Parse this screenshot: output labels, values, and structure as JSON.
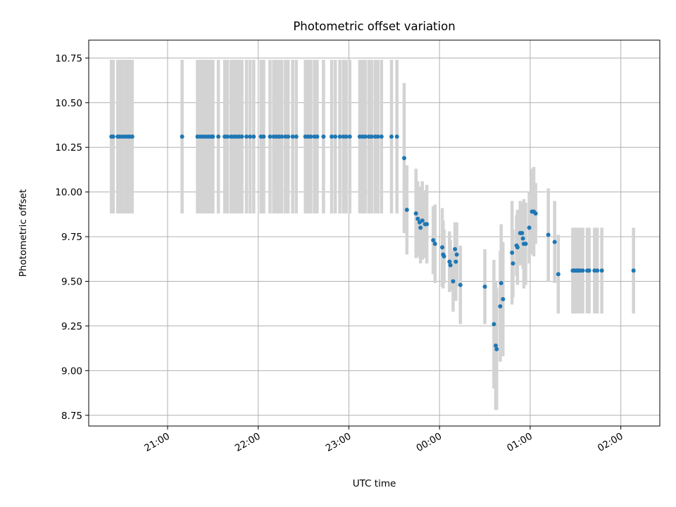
{
  "chart_data": {
    "type": "scatter",
    "title": "Photometric offset variation",
    "xlabel": "UTC time",
    "ylabel": "Photometric offset",
    "xlim": [
      20.13,
      26.43
    ],
    "ylim": [
      8.69,
      10.85
    ],
    "grid": true,
    "colors": {
      "points": "#1f77b4",
      "error_bars": "#d3d3d3"
    },
    "x_tick_labels": [
      "21:00",
      "22:00",
      "23:00",
      "00:00",
      "01:00",
      "02:00"
    ],
    "x_tick_values": [
      21,
      22,
      23,
      24,
      25,
      26
    ],
    "y_tick_labels": [
      "8.75",
      "9.00",
      "9.25",
      "9.50",
      "9.75",
      "10.00",
      "10.25",
      "10.50",
      "10.75"
    ],
    "y_tick_values": [
      8.75,
      9.0,
      9.25,
      9.5,
      9.75,
      10.0,
      10.25,
      10.5,
      10.75
    ],
    "x_unit": "hours since 20:00 UTC of first night; values above 24 are after midnight",
    "points": [
      [
        20.38,
        10.31,
        0.43
      ],
      [
        20.4,
        10.31,
        0.43
      ],
      [
        20.45,
        10.31,
        0.43
      ],
      [
        20.47,
        10.31,
        0.43
      ],
      [
        20.5,
        10.31,
        0.43
      ],
      [
        20.53,
        10.31,
        0.43
      ],
      [
        20.56,
        10.31,
        0.43
      ],
      [
        20.58,
        10.31,
        0.43
      ],
      [
        20.61,
        10.31,
        0.43
      ],
      [
        21.16,
        10.31,
        0.43
      ],
      [
        21.33,
        10.31,
        0.43
      ],
      [
        21.36,
        10.31,
        0.43
      ],
      [
        21.39,
        10.31,
        0.43
      ],
      [
        21.42,
        10.31,
        0.43
      ],
      [
        21.45,
        10.31,
        0.43
      ],
      [
        21.48,
        10.31,
        0.43
      ],
      [
        21.5,
        10.31,
        0.43
      ],
      [
        21.56,
        10.31,
        0.43
      ],
      [
        21.63,
        10.31,
        0.43
      ],
      [
        21.66,
        10.31,
        0.43
      ],
      [
        21.7,
        10.31,
        0.43
      ],
      [
        21.73,
        10.31,
        0.43
      ],
      [
        21.76,
        10.31,
        0.43
      ],
      [
        21.79,
        10.31,
        0.43
      ],
      [
        21.82,
        10.31,
        0.43
      ],
      [
        21.87,
        10.31,
        0.43
      ],
      [
        21.91,
        10.31,
        0.43
      ],
      [
        21.95,
        10.31,
        0.43
      ],
      [
        22.03,
        10.31,
        0.43
      ],
      [
        22.06,
        10.31,
        0.43
      ],
      [
        22.13,
        10.31,
        0.43
      ],
      [
        22.17,
        10.31,
        0.43
      ],
      [
        22.2,
        10.31,
        0.43
      ],
      [
        22.23,
        10.31,
        0.43
      ],
      [
        22.26,
        10.31,
        0.43
      ],
      [
        22.3,
        10.31,
        0.43
      ],
      [
        22.33,
        10.31,
        0.43
      ],
      [
        22.38,
        10.31,
        0.43
      ],
      [
        22.42,
        10.31,
        0.43
      ],
      [
        22.52,
        10.31,
        0.43
      ],
      [
        22.55,
        10.31,
        0.43
      ],
      [
        22.58,
        10.31,
        0.43
      ],
      [
        22.62,
        10.31,
        0.43
      ],
      [
        22.65,
        10.31,
        0.43
      ],
      [
        22.72,
        10.31,
        0.43
      ],
      [
        22.81,
        10.31,
        0.43
      ],
      [
        22.85,
        10.31,
        0.43
      ],
      [
        22.9,
        10.31,
        0.43
      ],
      [
        22.94,
        10.31,
        0.43
      ],
      [
        22.97,
        10.31,
        0.43
      ],
      [
        23.01,
        10.31,
        0.43
      ],
      [
        23.12,
        10.31,
        0.43
      ],
      [
        23.15,
        10.31,
        0.43
      ],
      [
        23.18,
        10.31,
        0.43
      ],
      [
        23.22,
        10.31,
        0.43
      ],
      [
        23.25,
        10.31,
        0.43
      ],
      [
        23.29,
        10.31,
        0.43
      ],
      [
        23.32,
        10.31,
        0.43
      ],
      [
        23.36,
        10.31,
        0.43
      ],
      [
        23.47,
        10.31,
        0.43
      ],
      [
        23.53,
        10.31,
        0.43
      ],
      [
        23.61,
        10.19,
        0.42
      ],
      [
        23.64,
        9.9,
        0.25
      ],
      [
        23.74,
        9.88,
        0.25
      ],
      [
        23.76,
        9.85,
        0.21
      ],
      [
        23.78,
        9.83,
        0.2
      ],
      [
        23.79,
        9.8,
        0.2
      ],
      [
        23.81,
        9.84,
        0.22
      ],
      [
        23.84,
        9.82,
        0.19
      ],
      [
        23.86,
        9.82,
        0.22
      ],
      [
        23.93,
        9.73,
        0.19
      ],
      [
        23.95,
        9.71,
        0.22
      ],
      [
        24.03,
        9.69,
        0.22
      ],
      [
        24.04,
        9.65,
        0.19
      ],
      [
        24.05,
        9.64,
        0.15
      ],
      [
        24.11,
        9.61,
        0.17
      ],
      [
        24.12,
        9.59,
        0.14
      ],
      [
        24.15,
        9.5,
        0.17
      ],
      [
        24.17,
        9.68,
        0.15
      ],
      [
        24.18,
        9.61,
        0.22
      ],
      [
        24.19,
        9.65,
        0.18
      ],
      [
        24.23,
        9.48,
        0.22
      ],
      [
        24.5,
        9.47,
        0.21
      ],
      [
        24.6,
        9.26,
        0.36
      ],
      [
        24.62,
        9.14,
        0.36
      ],
      [
        24.63,
        9.12,
        0.34
      ],
      [
        24.67,
        9.36,
        0.31
      ],
      [
        24.68,
        9.49,
        0.33
      ],
      [
        24.7,
        9.4,
        0.32
      ],
      [
        24.8,
        9.66,
        0.29
      ],
      [
        24.81,
        9.6,
        0.19
      ],
      [
        24.85,
        9.7,
        0.17
      ],
      [
        24.86,
        9.69,
        0.21
      ],
      [
        24.89,
        9.77,
        0.18
      ],
      [
        24.91,
        9.77,
        0.17
      ],
      [
        24.92,
        9.74,
        0.17
      ],
      [
        24.93,
        9.71,
        0.25
      ],
      [
        24.95,
        9.71,
        0.23
      ],
      [
        24.99,
        9.8,
        0.2
      ],
      [
        25.02,
        9.89,
        0.24
      ],
      [
        25.04,
        9.89,
        0.25
      ],
      [
        25.06,
        9.88,
        0.17
      ],
      [
        25.2,
        9.76,
        0.26
      ],
      [
        25.27,
        9.72,
        0.23
      ],
      [
        25.31,
        9.54,
        0.22
      ],
      [
        25.47,
        9.56,
        0.24
      ],
      [
        25.49,
        9.56,
        0.24
      ],
      [
        25.51,
        9.56,
        0.24
      ],
      [
        25.53,
        9.56,
        0.24
      ],
      [
        25.55,
        9.56,
        0.24
      ],
      [
        25.58,
        9.56,
        0.24
      ],
      [
        25.63,
        9.56,
        0.24
      ],
      [
        25.65,
        9.56,
        0.24
      ],
      [
        25.71,
        9.56,
        0.24
      ],
      [
        25.74,
        9.56,
        0.24
      ],
      [
        25.79,
        9.56,
        0.24
      ],
      [
        26.14,
        9.56,
        0.24
      ]
    ]
  }
}
